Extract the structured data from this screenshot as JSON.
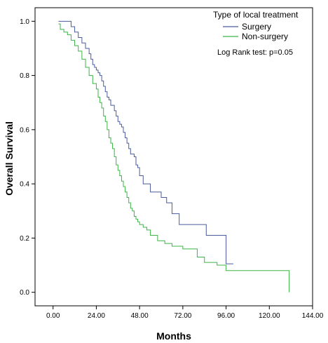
{
  "chart_data": {
    "type": "line",
    "subtype": "kaplan-meier",
    "xlabel": "Months",
    "ylabel": "Overall Survival",
    "xlim": [
      -10,
      144
    ],
    "ylim": [
      -0.05,
      1.05
    ],
    "xticks": [
      0,
      24,
      48,
      72,
      96,
      120,
      144
    ],
    "xtick_labels": [
      "0.00",
      "24.00",
      "48.00",
      "72.00",
      "96.00",
      "120.00",
      "144.00"
    ],
    "yticks": [
      0.0,
      0.2,
      0.4,
      0.6,
      0.8,
      1.0
    ],
    "ytick_labels": [
      "0.0",
      "0.2",
      "0.4",
      "0.6",
      "0.8",
      "1.0"
    ],
    "legend": {
      "title": "Type of local treatment",
      "position": "top-right"
    },
    "annotation": "Log Rank test: p=0.05",
    "series": [
      {
        "name": "Surgery",
        "color": "#4a5b9e",
        "x": [
          3,
          10,
          12,
          14,
          16,
          18,
          20,
          21,
          22,
          23,
          24,
          25,
          26,
          27,
          28,
          29,
          30,
          31,
          32,
          34,
          35,
          36,
          37,
          38,
          39,
          40,
          41,
          42,
          43,
          45,
          46,
          47,
          48,
          50,
          54,
          56,
          60,
          63,
          66,
          70,
          85,
          94,
          96,
          100
        ],
        "y": [
          1.0,
          0.98,
          0.96,
          0.94,
          0.92,
          0.9,
          0.88,
          0.86,
          0.84,
          0.83,
          0.82,
          0.81,
          0.8,
          0.78,
          0.76,
          0.74,
          0.72,
          0.71,
          0.69,
          0.67,
          0.65,
          0.63,
          0.62,
          0.61,
          0.59,
          0.57,
          0.55,
          0.53,
          0.51,
          0.5,
          0.47,
          0.46,
          0.43,
          0.4,
          0.37,
          0.37,
          0.35,
          0.33,
          0.29,
          0.25,
          0.21,
          0.21,
          0.105,
          0.105
        ]
      },
      {
        "name": "Non-surgery",
        "color": "#3cb446",
        "x": [
          3,
          4,
          6,
          8,
          10,
          12,
          14,
          16,
          18,
          20,
          22,
          24,
          25,
          26,
          27,
          28,
          29,
          30,
          31,
          32,
          33,
          34,
          35,
          36,
          37,
          38,
          39,
          40,
          41,
          42,
          43,
          44,
          45,
          46,
          47,
          48,
          50,
          52,
          54,
          58,
          62,
          66,
          72,
          80,
          84,
          91,
          96,
          120,
          131
        ],
        "y": [
          0.99,
          0.97,
          0.96,
          0.95,
          0.93,
          0.91,
          0.89,
          0.86,
          0.83,
          0.8,
          0.77,
          0.75,
          0.72,
          0.7,
          0.68,
          0.65,
          0.63,
          0.6,
          0.57,
          0.55,
          0.53,
          0.5,
          0.47,
          0.45,
          0.43,
          0.41,
          0.39,
          0.37,
          0.35,
          0.33,
          0.31,
          0.3,
          0.28,
          0.27,
          0.26,
          0.25,
          0.24,
          0.23,
          0.21,
          0.19,
          0.18,
          0.17,
          0.16,
          0.13,
          0.11,
          0.1,
          0.08,
          0.08,
          0.0
        ]
      }
    ]
  }
}
